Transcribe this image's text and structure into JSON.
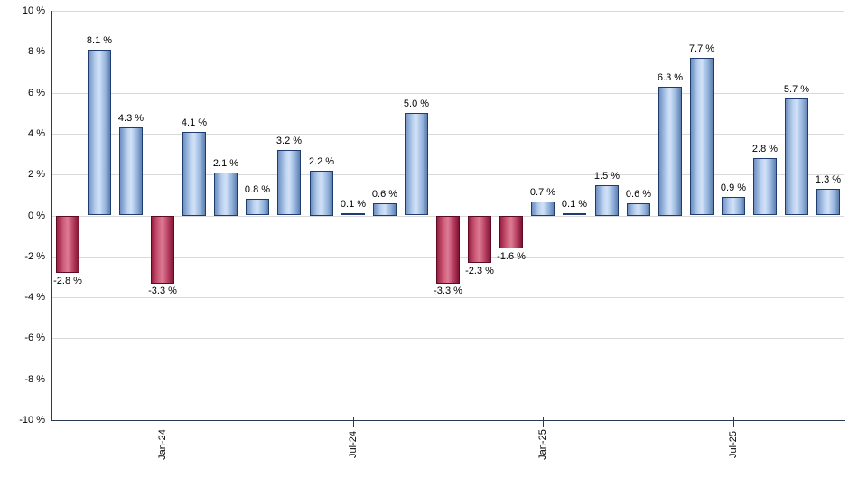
{
  "chart_data": {
    "type": "bar",
    "title": "",
    "xlabel": "",
    "ylabel": "",
    "ylim": [
      -10,
      10
    ],
    "ytick_step": 2,
    "grid": true,
    "legend_position": "none",
    "y_tick_labels": [
      "10 %",
      "8 %",
      "6 %",
      "4 %",
      "2 %",
      "0 %",
      "-2 %",
      "-4 %",
      "-6 %",
      "-8 %",
      "-10 %"
    ],
    "values": [
      -2.8,
      8.1,
      4.3,
      -3.3,
      4.1,
      2.1,
      0.8,
      3.2,
      2.2,
      0.1,
      0.6,
      5.0,
      -3.3,
      -2.3,
      -1.6,
      0.7,
      0.1,
      1.5,
      0.6,
      6.3,
      7.7,
      0.9,
      2.8,
      5.7,
      1.3
    ],
    "value_labels": [
      "-2.8 %",
      "8.1 %",
      "4.3 %",
      "-3.3 %",
      "4.1 %",
      "2.1 %",
      "0.8 %",
      "3.2 %",
      "2.2 %",
      "0.1 %",
      "0.6 %",
      "5.0 %",
      "-3.3 %",
      "-2.3 %",
      "-1.6 %",
      "0.7 %",
      "0.1 %",
      "1.5 %",
      "0.6 %",
      "6.3 %",
      "7.7 %",
      "0.9 %",
      "2.8 %",
      "5.7 %",
      "1.3 %"
    ],
    "x_tick_labels": [
      {
        "bar_index": 3,
        "label": "Jan-24"
      },
      {
        "bar_index": 9,
        "label": "Jul-24"
      },
      {
        "bar_index": 15,
        "label": "Jan-25"
      },
      {
        "bar_index": 21,
        "label": "Jul-25"
      }
    ],
    "colors": {
      "positive_fill": "#a9c4e8",
      "positive_edge": "#1f3c70",
      "negative_fill": "#c84a6a",
      "negative_edge": "#5e0a24",
      "gridline": "#d9d9d9",
      "axis": "#2b3a55",
      "background": "#ffffff"
    }
  }
}
